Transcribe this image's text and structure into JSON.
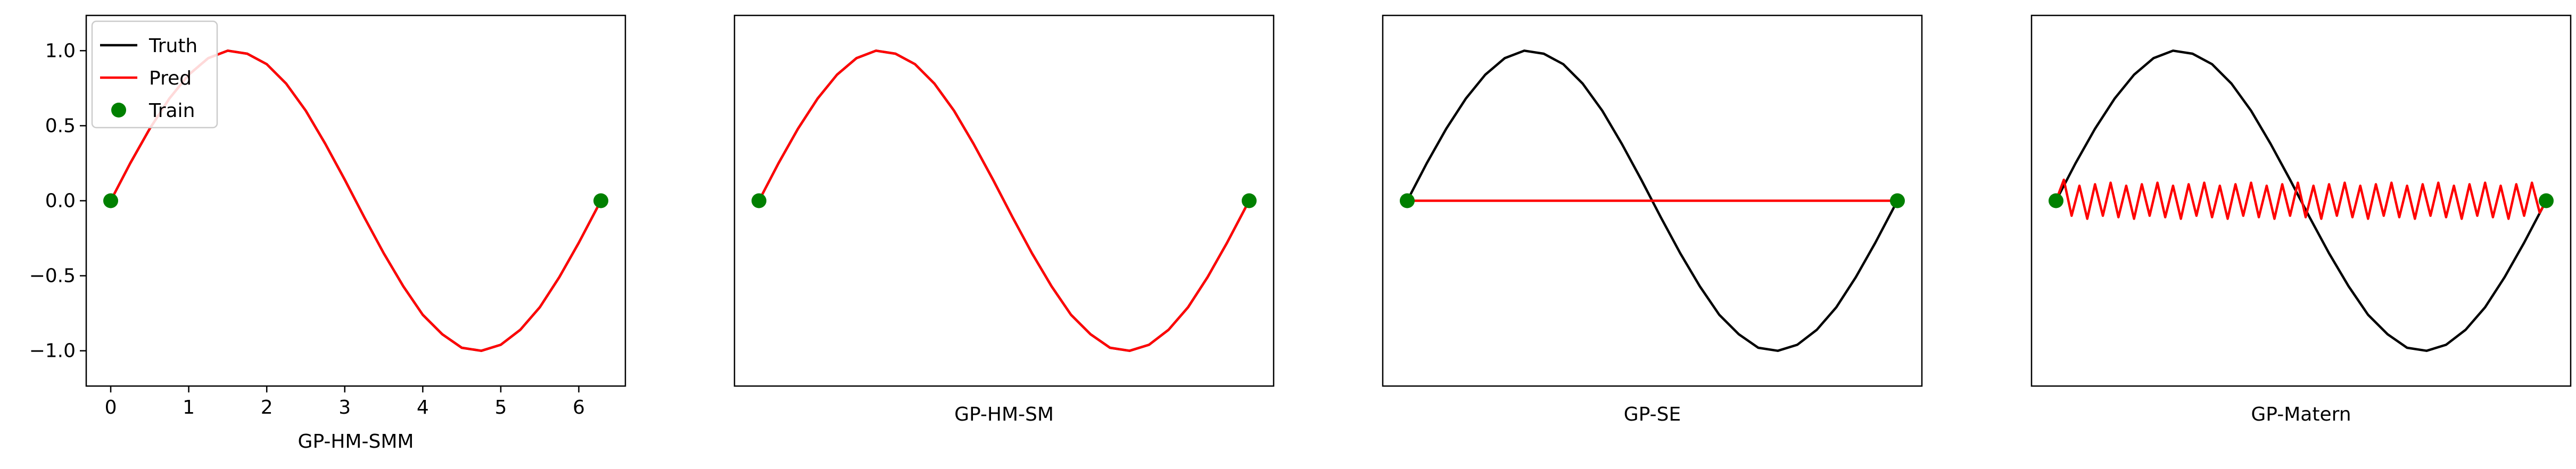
{
  "chart_data": [
    {
      "type": "line",
      "xlabel": "GP-HM-SMM",
      "xlim": [
        -0.314,
        6.597
      ],
      "ylim": [
        -1.235,
        1.235
      ],
      "xticks": [
        0,
        1,
        2,
        3,
        4,
        5,
        6
      ],
      "xtick_labels": [
        "0",
        "1",
        "2",
        "3",
        "4",
        "5",
        "6"
      ],
      "yticks": [
        -1.0,
        -0.5,
        0.0,
        0.5,
        1.0
      ],
      "ytick_labels": [
        "−1.0",
        "−0.5",
        "0.0",
        "0.5",
        "1.0"
      ],
      "legend": {
        "location": "upper-left",
        "entries": [
          {
            "label": "Truth",
            "kind": "line",
            "color": "#000000"
          },
          {
            "label": "Pred",
            "kind": "line",
            "color": "#ff0000"
          },
          {
            "label": "Train",
            "kind": "marker",
            "color": "#008000"
          }
        ]
      },
      "series": [
        {
          "name": "Truth",
          "color": "#000000",
          "x": [
            0,
            0.25,
            0.5,
            0.75,
            1,
            1.25,
            1.5,
            1.75,
            2,
            2.25,
            2.5,
            2.75,
            3,
            3.25,
            3.5,
            3.75,
            4,
            4.25,
            4.5,
            4.75,
            5,
            5.25,
            5.5,
            5.75,
            6,
            6.283
          ],
          "y": [
            0,
            0.25,
            0.48,
            0.68,
            0.84,
            0.95,
            1.0,
            0.98,
            0.91,
            0.78,
            0.6,
            0.38,
            0.14,
            -0.11,
            -0.35,
            -0.57,
            -0.76,
            -0.89,
            -0.98,
            -1.0,
            -0.96,
            -0.86,
            -0.71,
            -0.51,
            -0.28,
            0
          ]
        },
        {
          "name": "Pred",
          "color": "#ff0000",
          "x": [
            0,
            0.25,
            0.5,
            0.75,
            1,
            1.25,
            1.5,
            1.75,
            2,
            2.25,
            2.5,
            2.75,
            3,
            3.25,
            3.5,
            3.75,
            4,
            4.25,
            4.5,
            4.75,
            5,
            5.25,
            5.5,
            5.75,
            6,
            6.283
          ],
          "y": [
            0,
            0.25,
            0.48,
            0.68,
            0.84,
            0.95,
            1.0,
            0.98,
            0.91,
            0.78,
            0.6,
            0.38,
            0.14,
            -0.11,
            -0.35,
            -0.57,
            -0.76,
            -0.89,
            -0.98,
            -1.0,
            -0.96,
            -0.86,
            -0.71,
            -0.51,
            -0.28,
            0
          ]
        },
        {
          "name": "Train",
          "color": "#008000",
          "x": [
            0,
            6.283
          ],
          "y": [
            0,
            0
          ]
        }
      ]
    },
    {
      "type": "line",
      "xlabel": "GP-HM-SM",
      "xlim": [
        -0.314,
        6.597
      ],
      "ylim": [
        -1.235,
        1.235
      ],
      "series": [
        {
          "name": "Truth",
          "color": "#000000",
          "x": [
            0,
            0.25,
            0.5,
            0.75,
            1,
            1.25,
            1.5,
            1.75,
            2,
            2.25,
            2.5,
            2.75,
            3,
            3.25,
            3.5,
            3.75,
            4,
            4.25,
            4.5,
            4.75,
            5,
            5.25,
            5.5,
            5.75,
            6,
            6.283
          ],
          "y": [
            0,
            0.25,
            0.48,
            0.68,
            0.84,
            0.95,
            1.0,
            0.98,
            0.91,
            0.78,
            0.6,
            0.38,
            0.14,
            -0.11,
            -0.35,
            -0.57,
            -0.76,
            -0.89,
            -0.98,
            -1.0,
            -0.96,
            -0.86,
            -0.71,
            -0.51,
            -0.28,
            0
          ]
        },
        {
          "name": "Pred",
          "color": "#ff0000",
          "x": [
            0,
            0.25,
            0.5,
            0.75,
            1,
            1.25,
            1.5,
            1.75,
            2,
            2.25,
            2.5,
            2.75,
            3,
            3.25,
            3.5,
            3.75,
            4,
            4.25,
            4.5,
            4.75,
            5,
            5.25,
            5.5,
            5.75,
            6,
            6.283
          ],
          "y": [
            0,
            0.25,
            0.48,
            0.68,
            0.84,
            0.95,
            1.0,
            0.98,
            0.91,
            0.78,
            0.6,
            0.38,
            0.14,
            -0.11,
            -0.35,
            -0.57,
            -0.76,
            -0.89,
            -0.98,
            -1.0,
            -0.96,
            -0.86,
            -0.71,
            -0.51,
            -0.28,
            0
          ]
        },
        {
          "name": "Train",
          "color": "#008000",
          "x": [
            0,
            6.283
          ],
          "y": [
            0,
            0
          ]
        }
      ]
    },
    {
      "type": "line",
      "xlabel": "GP-SE",
      "xlim": [
        -0.314,
        6.597
      ],
      "ylim": [
        -1.235,
        1.235
      ],
      "series": [
        {
          "name": "Truth",
          "color": "#000000",
          "x": [
            0,
            0.25,
            0.5,
            0.75,
            1,
            1.25,
            1.5,
            1.75,
            2,
            2.25,
            2.5,
            2.75,
            3,
            3.25,
            3.5,
            3.75,
            4,
            4.25,
            4.5,
            4.75,
            5,
            5.25,
            5.5,
            5.75,
            6,
            6.283
          ],
          "y": [
            0,
            0.25,
            0.48,
            0.68,
            0.84,
            0.95,
            1.0,
            0.98,
            0.91,
            0.78,
            0.6,
            0.38,
            0.14,
            -0.11,
            -0.35,
            -0.57,
            -0.76,
            -0.89,
            -0.98,
            -1.0,
            -0.96,
            -0.86,
            -0.71,
            -0.51,
            -0.28,
            0
          ]
        },
        {
          "name": "Pred",
          "color": "#ff0000",
          "x": [
            0,
            6.283
          ],
          "y": [
            0,
            0
          ]
        },
        {
          "name": "Train",
          "color": "#008000",
          "x": [
            0,
            6.283
          ],
          "y": [
            0,
            0
          ]
        }
      ]
    },
    {
      "type": "line",
      "xlabel": "GP-Matern",
      "xlim": [
        -0.314,
        6.597
      ],
      "ylim": [
        -1.235,
        1.235
      ],
      "series": [
        {
          "name": "Truth",
          "color": "#000000",
          "x": [
            0,
            0.25,
            0.5,
            0.75,
            1,
            1.25,
            1.5,
            1.75,
            2,
            2.25,
            2.5,
            2.75,
            3,
            3.25,
            3.5,
            3.75,
            4,
            4.25,
            4.5,
            4.75,
            5,
            5.25,
            5.5,
            5.75,
            6,
            6.283
          ],
          "y": [
            0,
            0.25,
            0.48,
            0.68,
            0.84,
            0.95,
            1.0,
            0.98,
            0.91,
            0.78,
            0.6,
            0.38,
            0.14,
            -0.11,
            -0.35,
            -0.57,
            -0.76,
            -0.89,
            -0.98,
            -1.0,
            -0.96,
            -0.86,
            -0.71,
            -0.51,
            -0.28,
            0
          ]
        },
        {
          "name": "Pred",
          "color": "#ff0000",
          "x": [
            0,
            0.1,
            0.2,
            0.3,
            0.4,
            0.5,
            0.6,
            0.7,
            0.8,
            0.9,
            1,
            1.1,
            1.2,
            1.3,
            1.4,
            1.5,
            1.6,
            1.7,
            1.8,
            1.9,
            2,
            2.1,
            2.2,
            2.3,
            2.4,
            2.5,
            2.6,
            2.7,
            2.8,
            2.9,
            3,
            3.1,
            3.2,
            3.3,
            3.4,
            3.5,
            3.6,
            3.7,
            3.8,
            3.9,
            4,
            4.1,
            4.2,
            4.3,
            4.4,
            4.5,
            4.6,
            4.7,
            4.8,
            4.9,
            5,
            5.1,
            5.2,
            5.3,
            5.4,
            5.5,
            5.6,
            5.7,
            5.8,
            5.9,
            6,
            6.1,
            6.2,
            6.283
          ],
          "y": [
            0,
            0.14,
            -0.1,
            0.1,
            -0.12,
            0.11,
            -0.1,
            0.12,
            -0.11,
            0.1,
            -0.12,
            0.11,
            -0.1,
            0.12,
            -0.11,
            0.1,
            -0.12,
            0.11,
            -0.1,
            0.12,
            -0.11,
            0.1,
            -0.12,
            0.11,
            -0.1,
            0.12,
            -0.11,
            0.1,
            -0.12,
            0.11,
            -0.1,
            0.12,
            -0.11,
            0.1,
            -0.12,
            0.11,
            -0.1,
            0.12,
            -0.11,
            0.1,
            -0.12,
            0.11,
            -0.1,
            0.12,
            -0.11,
            0.1,
            -0.12,
            0.11,
            -0.1,
            0.12,
            -0.11,
            0.1,
            -0.12,
            0.11,
            -0.1,
            0.12,
            -0.11,
            0.1,
            -0.12,
            0.11,
            -0.1,
            0.12,
            -0.08,
            0
          ]
        },
        {
          "name": "Train",
          "color": "#008000",
          "x": [
            0,
            6.283
          ],
          "y": [
            0,
            0
          ]
        }
      ]
    }
  ]
}
